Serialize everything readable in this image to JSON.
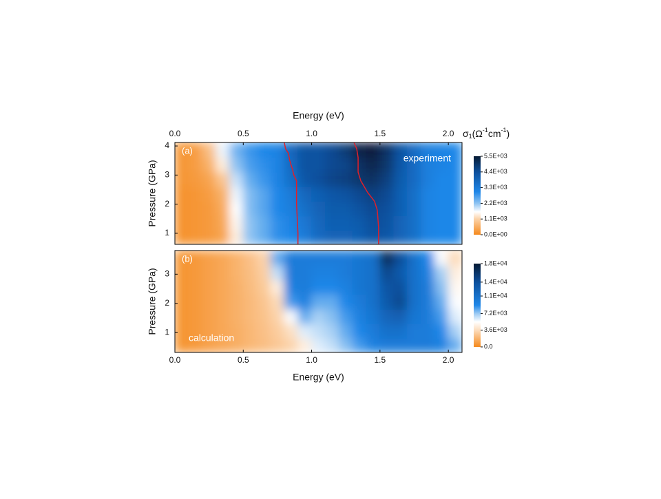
{
  "chart_data": [
    {
      "type": "heatmap",
      "panel_label": "(a)",
      "annotation": "experiment",
      "xlabel": "Energy (eV)",
      "xaxis_position": "top",
      "ylabel": "Pressure (GPa)",
      "colorbar_title": [
        "σ",
        "1",
        "(Ω",
        "-1",
        "cm",
        "-1",
        ")"
      ],
      "xlim": [
        0,
        2.1
      ],
      "xticks": [
        {
          "value": 0,
          "label": "0.0"
        },
        0.5,
        {
          "value": 1,
          "label": "1.0"
        },
        1.5,
        {
          "value": 2,
          "label": "2.0"
        }
      ],
      "ylim": [
        0.62,
        4.12
      ],
      "yticks": [
        1,
        2,
        3,
        4
      ],
      "xbins": [
        0,
        0.1,
        0.2,
        0.3,
        0.4,
        0.5,
        0.6,
        0.7,
        0.8,
        0.9,
        1.0,
        1.1,
        1.2,
        1.3,
        1.4,
        1.5,
        1.6,
        1.7,
        1.8,
        1.9,
        2.0,
        2.1
      ],
      "ybins": [
        0.62,
        1.1,
        1.6,
        2.1,
        2.6,
        3.1,
        3.6,
        4.12
      ],
      "z": [
        [
          150,
          200,
          250,
          400,
          1400,
          2200,
          2500,
          2900,
          3000,
          3300,
          3700,
          3900,
          3900,
          4000,
          4300,
          4200,
          3900,
          3600,
          3100,
          3000,
          3000
        ],
        [
          150,
          200,
          250,
          450,
          1500,
          2200,
          2500,
          2900,
          3100,
          3400,
          3800,
          4000,
          4000,
          4100,
          4400,
          4300,
          3900,
          3600,
          3100,
          3000,
          3000
        ],
        [
          150,
          200,
          250,
          500,
          1600,
          2300,
          2600,
          3000,
          3200,
          3600,
          3900,
          4100,
          4100,
          4300,
          4500,
          4400,
          4000,
          3600,
          3100,
          3000,
          3000
        ],
        [
          150,
          200,
          300,
          600,
          1700,
          2300,
          2600,
          3000,
          3300,
          3800,
          4000,
          4200,
          4300,
          4500,
          4700,
          4500,
          4000,
          3600,
          3100,
          3000,
          3000
        ],
        [
          200,
          250,
          400,
          900,
          1900,
          2500,
          2800,
          3100,
          3600,
          4200,
          4400,
          4600,
          4700,
          4900,
          5000,
          4700,
          4100,
          3700,
          3200,
          3000,
          3000
        ],
        [
          200,
          300,
          600,
          1400,
          2200,
          2700,
          2900,
          3100,
          3700,
          4300,
          4300,
          4500,
          4600,
          5000,
          5200,
          4900,
          4200,
          3700,
          3200,
          3100,
          3000
        ],
        [
          200,
          300,
          800,
          1700,
          2400,
          2800,
          3000,
          3100,
          3800,
          4300,
          4300,
          4500,
          4800,
          5300,
          5400,
          5000,
          4300,
          3700,
          3200,
          3100,
          3000
        ]
      ],
      "colorscale": [
        [
          0,
          "#f5891c"
        ],
        [
          1100,
          "#fbd2a8"
        ],
        [
          1600,
          "#ffffff"
        ],
        [
          2200,
          "#8ec3f2"
        ],
        [
          3000,
          "#1f87e8"
        ],
        [
          4400,
          "#0c4f9c"
        ],
        [
          5500,
          "#061a33"
        ]
      ],
      "zlim": [
        0,
        5500
      ],
      "zticks": [
        {
          "value": 0,
          "label": "0.0E+00"
        },
        {
          "value": 1100,
          "label": "1.1E+03"
        },
        {
          "value": 2200,
          "label": "2.2E+03"
        },
        {
          "value": 3300,
          "label": "3.3E+03"
        },
        {
          "value": 4400,
          "label": "4.4E+03"
        },
        {
          "value": 5500,
          "label": "5.5E+03"
        }
      ],
      "lines": [
        {
          "color": "#e0202a",
          "x": [
            0.8,
            0.81,
            0.83,
            0.84,
            0.86,
            0.87,
            0.89,
            0.89,
            0.9,
            0.9
          ],
          "y": [
            4.12,
            3.9,
            3.75,
            3.5,
            3.2,
            3.0,
            2.8,
            2.0,
            1.0,
            0.62
          ]
        },
        {
          "color": "#e0202a",
          "x": [
            1.31,
            1.33,
            1.34,
            1.34,
            1.36,
            1.41,
            1.46,
            1.48,
            1.49,
            1.49
          ],
          "y": [
            4.12,
            3.9,
            3.6,
            3.1,
            2.8,
            2.4,
            2.1,
            1.8,
            1.2,
            0.62
          ]
        }
      ]
    },
    {
      "type": "heatmap",
      "panel_label": "(b)",
      "annotation": "calculation",
      "xlabel": "Energy (eV)",
      "xaxis_position": "bottom",
      "ylabel": "Pressure (GPa)",
      "xlim": [
        0,
        2.1
      ],
      "xticks": [
        {
          "value": 0,
          "label": "0.0"
        },
        0.5,
        {
          "value": 1,
          "label": "1.0"
        },
        1.5,
        {
          "value": 2,
          "label": "2.0"
        }
      ],
      "ylim": [
        0.32,
        3.81
      ],
      "yticks": [
        1,
        2,
        3
      ],
      "xbins": [
        0,
        0.1,
        0.2,
        0.3,
        0.4,
        0.5,
        0.6,
        0.7,
        0.8,
        0.9,
        1.0,
        1.1,
        1.2,
        1.3,
        1.4,
        1.5,
        1.6,
        1.7,
        1.8,
        1.9,
        2.0,
        2.1
      ],
      "ybins": [
        0.32,
        0.8,
        1.3,
        1.8,
        2.3,
        2.8,
        3.3,
        3.81
      ],
      "z": [
        [
          500,
          700,
          1000,
          1300,
          1600,
          2000,
          2300,
          2700,
          3200,
          4500,
          6000,
          6500,
          7500,
          8500,
          9500,
          10000,
          10000,
          10000,
          10000,
          9500,
          8000
        ],
        [
          500,
          700,
          1000,
          1300,
          1600,
          2000,
          2400,
          2900,
          3800,
          6000,
          6500,
          7000,
          8000,
          9000,
          10000,
          11000,
          11000,
          10000,
          10000,
          9000,
          7000
        ],
        [
          500,
          700,
          1000,
          1300,
          1700,
          2100,
          2500,
          3200,
          5500,
          8000,
          7000,
          7500,
          8500,
          9500,
          10500,
          12000,
          12500,
          10500,
          10000,
          8500,
          6000
        ],
        [
          500,
          700,
          1000,
          1300,
          1700,
          2100,
          2600,
          3500,
          8500,
          9500,
          8000,
          8000,
          9000,
          10000,
          11000,
          13000,
          14500,
          11000,
          10000,
          8000,
          5500
        ],
        [
          500,
          700,
          1000,
          1300,
          1700,
          2200,
          2800,
          4500,
          9500,
          10000,
          9000,
          9000,
          9500,
          10500,
          11000,
          13500,
          14000,
          11000,
          10000,
          7500,
          5000
        ],
        [
          500,
          700,
          1000,
          1300,
          1800,
          2300,
          3000,
          6500,
          10000,
          10000,
          9500,
          9500,
          10000,
          10500,
          11000,
          14500,
          13000,
          11000,
          9500,
          7000,
          4500
        ],
        [
          500,
          700,
          1000,
          1300,
          1800,
          2400,
          3200,
          8000,
          10000,
          10000,
          10000,
          10000,
          10000,
          10500,
          11000,
          16500,
          14000,
          11000,
          9000,
          5500,
          3500
        ]
      ],
      "colorscale": [
        [
          0,
          "#f5891c"
        ],
        [
          3600,
          "#fcdcbc"
        ],
        [
          5400,
          "#ffffff"
        ],
        [
          7200,
          "#9ccaf3"
        ],
        [
          9000,
          "#1f87e8"
        ],
        [
          14000,
          "#0c4f9c"
        ],
        [
          18000,
          "#061a33"
        ]
      ],
      "zlim": [
        0,
        18000
      ],
      "zticks": [
        {
          "value": 0,
          "label": "0.0"
        },
        {
          "value": 3600,
          "label": "3.6E+03"
        },
        {
          "value": 7200,
          "label": "7.2E+03"
        },
        {
          "value": 11000,
          "label": "1.1E+04"
        },
        {
          "value": 14000,
          "label": "1.4E+04"
        },
        {
          "value": 18000,
          "label": "1.8E+04"
        }
      ]
    }
  ]
}
